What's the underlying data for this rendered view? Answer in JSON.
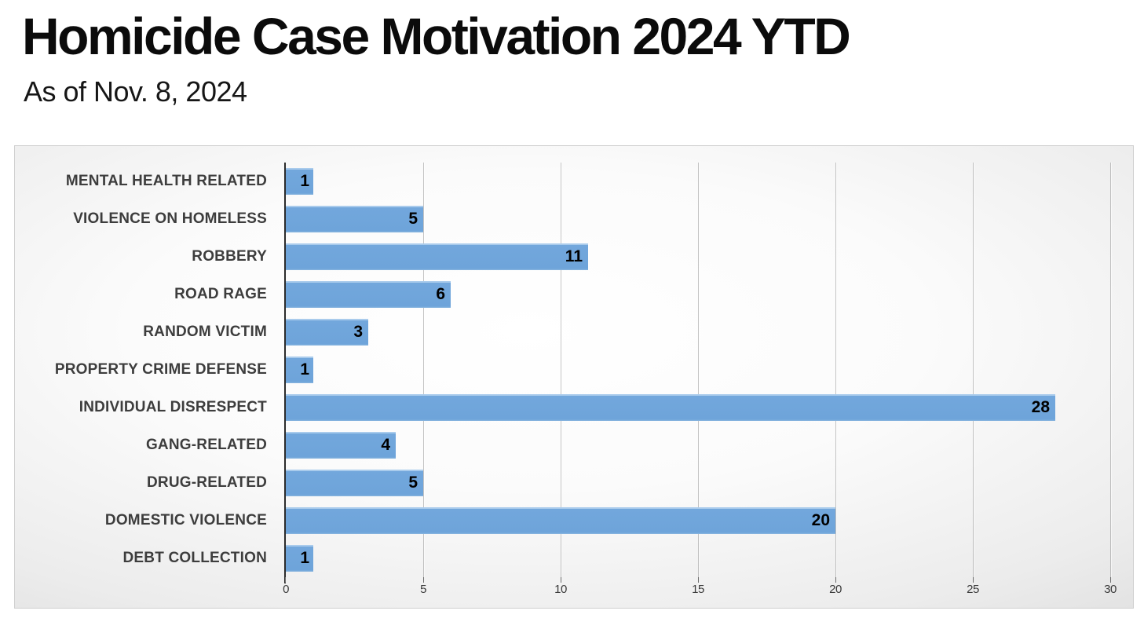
{
  "page": {
    "title": "Homicide Case Motivation 2024 YTD",
    "subtitle": "As of Nov. 8, 2024"
  },
  "chart_data": {
    "type": "bar",
    "orientation": "horizontal",
    "title": "Homicide Case Motivation 2024 YTD",
    "subtitle": "As of Nov. 8, 2024",
    "categories": [
      "MENTAL HEALTH RELATED",
      "VIOLENCE ON HOMELESS",
      "ROBBERY",
      "ROAD RAGE",
      "RANDOM VICTIM",
      "PROPERTY CRIME DEFENSE",
      "INDIVIDUAL DISRESPECT",
      "GANG-RELATED",
      "DRUG-RELATED",
      "DOMESTIC VIOLENCE",
      "DEBT COLLECTION"
    ],
    "values": [
      1,
      5,
      11,
      6,
      3,
      1,
      28,
      4,
      5,
      20,
      1
    ],
    "xlabel": "",
    "ylabel": "",
    "xlim": [
      0,
      30
    ],
    "x_ticks": [
      0,
      5,
      10,
      15,
      20,
      25,
      30
    ],
    "grid": true,
    "legend": false,
    "data_labels_position": "inside-end",
    "colors": {
      "bar": "#6EA4DA",
      "bar_highlight": "#A9CBEC",
      "category_label": "#3D3D3D",
      "value_label": "#000000",
      "axis_line": "#2B2B2B",
      "gridline": "#9A9A9A",
      "tick_label": "#3A3A3A",
      "plot_bg_center": "#FFFFFF",
      "plot_bg_edge": "#C7C7C7"
    }
  }
}
